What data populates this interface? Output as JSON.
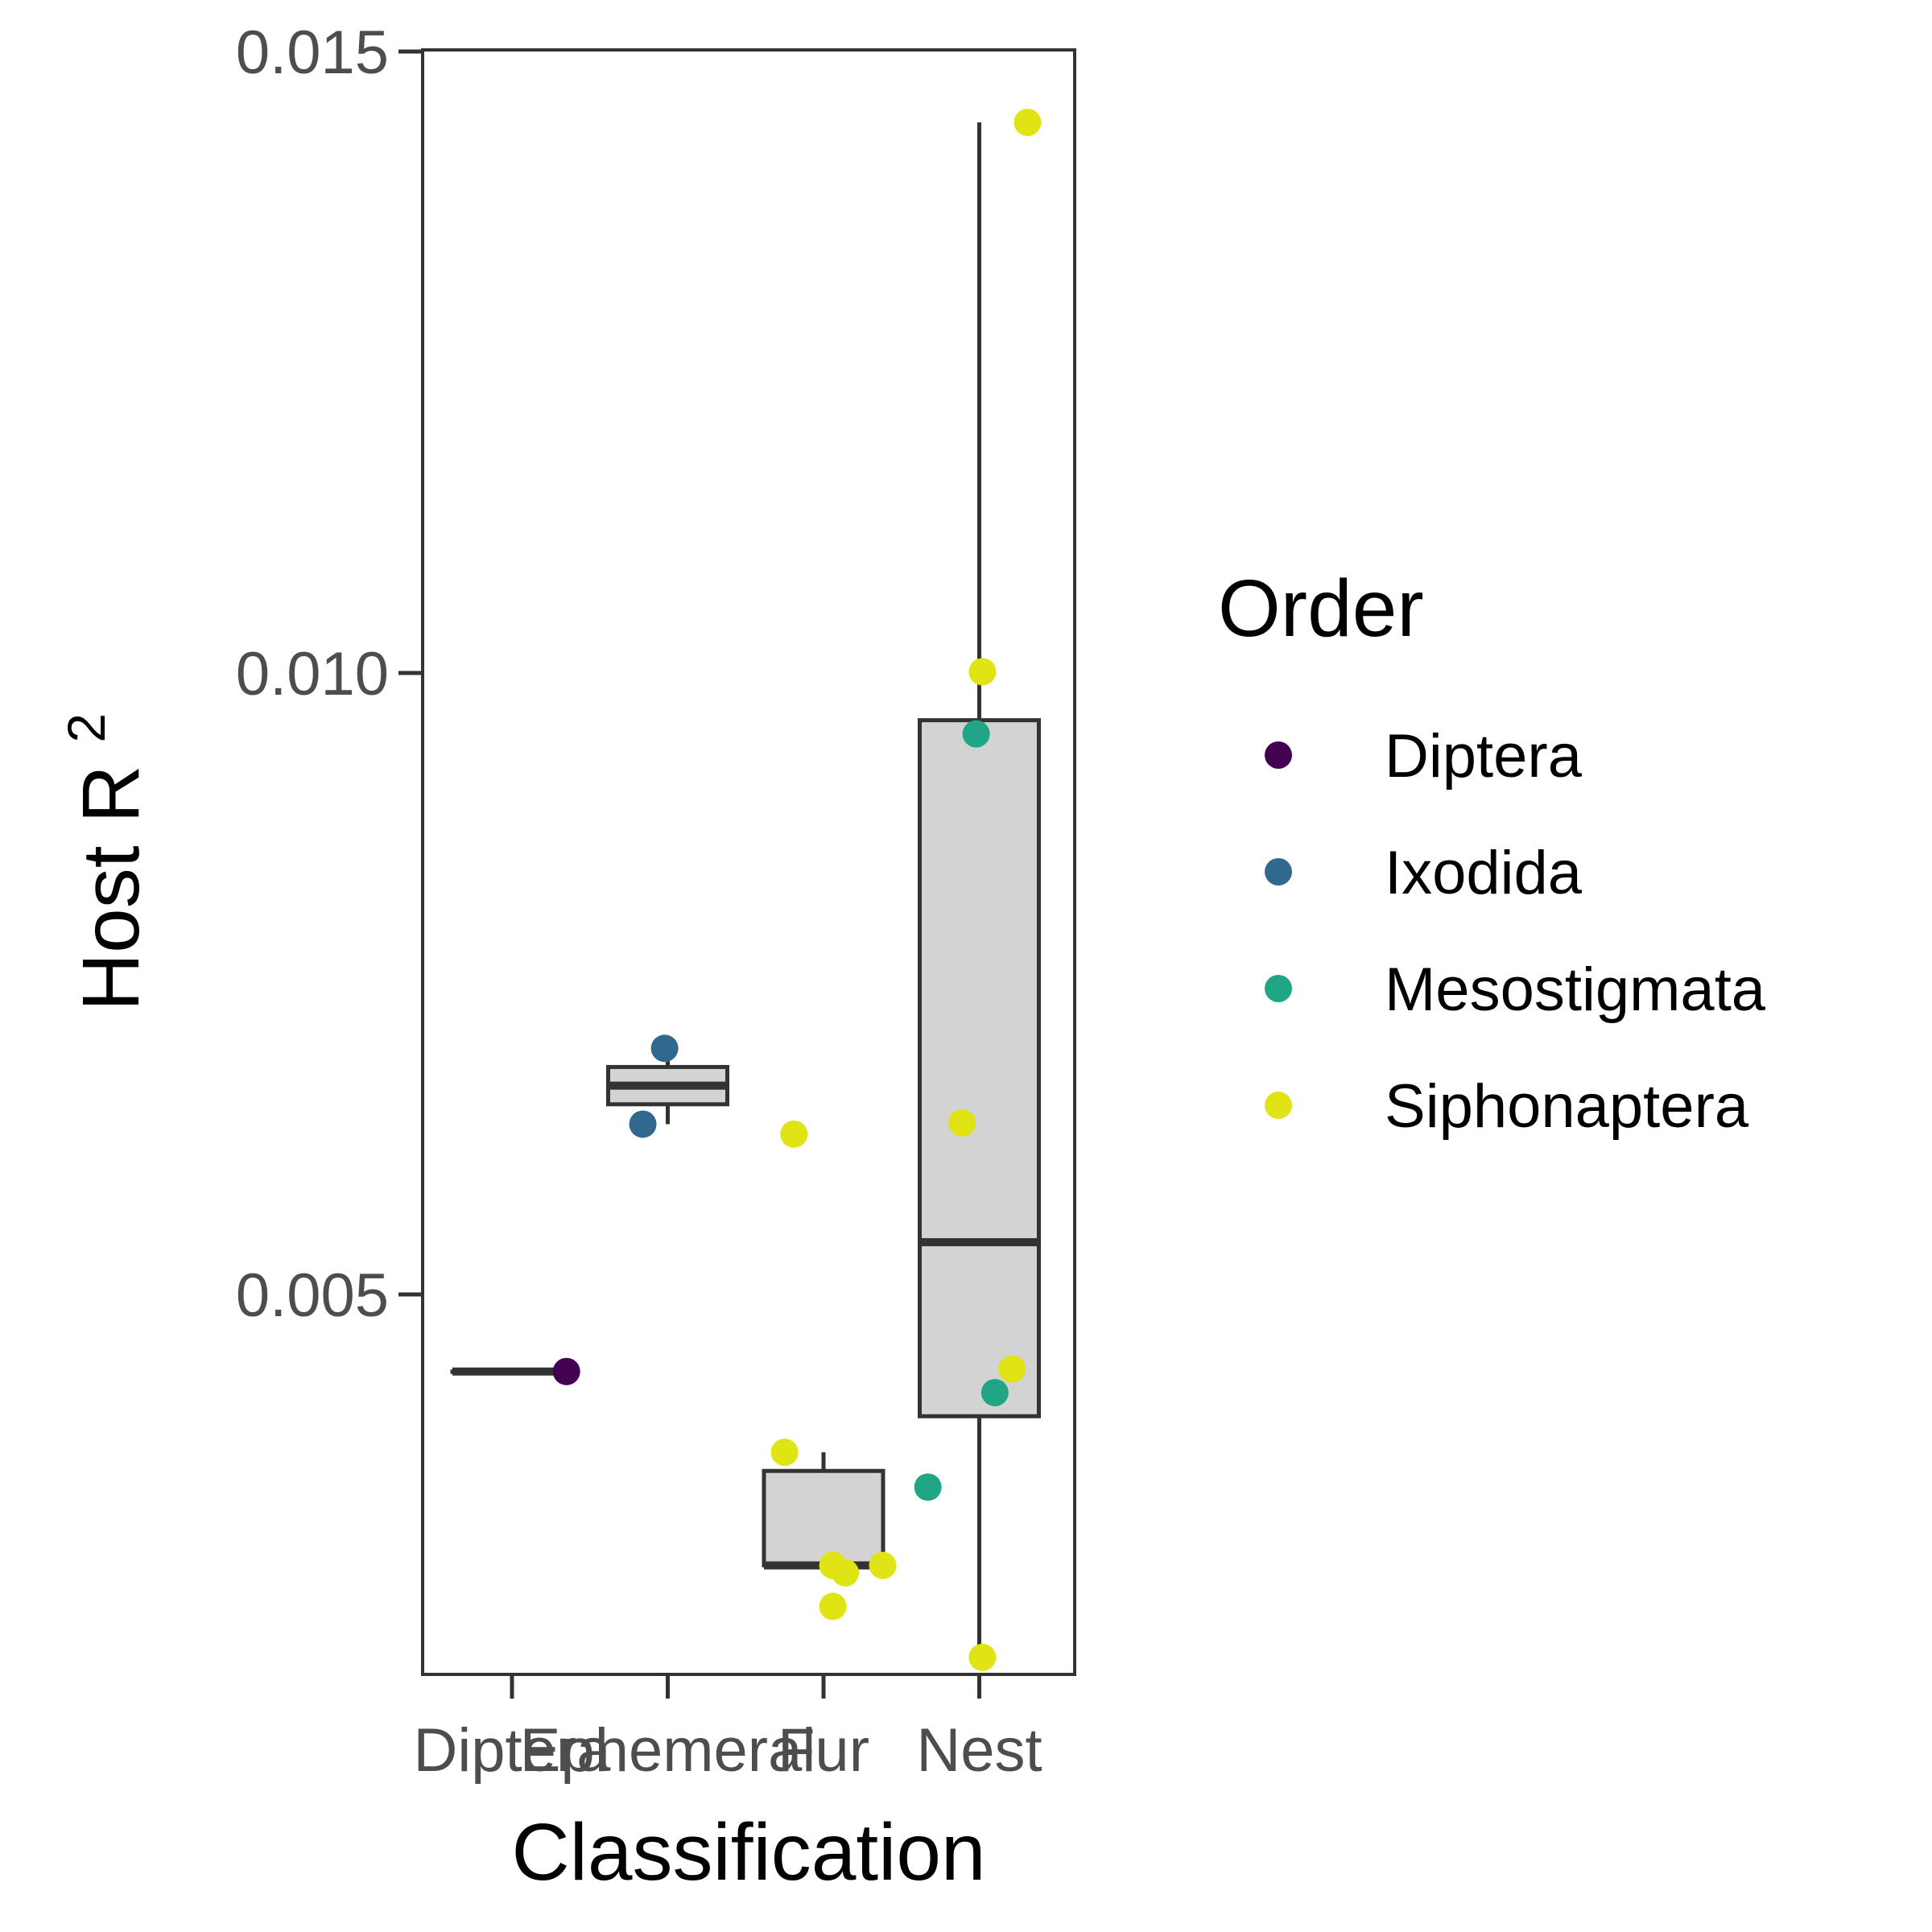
{
  "chart_data": {
    "type": "box+jitter",
    "xlabel": "Classification",
    "ylabel": "Host R",
    "ylabel_superscript": "2",
    "ylim": [
      0.0,
      0.015
    ],
    "yticks": [
      "0.005",
      "0.010",
      "0.015"
    ],
    "ytick_values": [
      0.005,
      0.01,
      0.015
    ],
    "categories": [
      "Diptera",
      "Ephemeral",
      "Fur",
      "Nest"
    ],
    "grid": false,
    "legend": {
      "title": "Order",
      "placement": "right",
      "entries": [
        {
          "name": "Diptera",
          "color": "#440154"
        },
        {
          "name": "Ixodida",
          "color": "#31688e"
        },
        {
          "name": "Mesostigmata",
          "color": "#21a685"
        },
        {
          "name": "Siphonaptera",
          "color": "#e0e314"
        }
      ]
    },
    "boxes": [
      {
        "category": "Diptera",
        "min": 0.00438,
        "q1": 0.00438,
        "median": 0.00438,
        "q3": 0.00438,
        "max": 0.00438
      },
      {
        "category": "Ephemeral",
        "min": 0.00637,
        "q1": 0.00653,
        "median": 0.00668,
        "q3": 0.00683,
        "max": 0.00698
      },
      {
        "category": "Fur",
        "min": 0.00282,
        "q1": 0.00282,
        "median": 0.00282,
        "q3": 0.00358,
        "max": 0.00373
      },
      {
        "category": "Nest",
        "min": 0.00208,
        "q1": 0.00402,
        "median": 0.00542,
        "q3": 0.00962,
        "max": 0.01443
      }
    ],
    "points": [
      {
        "category": "Diptera",
        "order": "Diptera",
        "y": 0.00438,
        "jitter": 0.35
      },
      {
        "category": "Ephemeral",
        "order": "Ixodida",
        "y": 0.00698,
        "jitter": -0.02
      },
      {
        "category": "Ephemeral",
        "order": "Ixodida",
        "y": 0.00637,
        "jitter": -0.16
      },
      {
        "category": "Fur",
        "order": "Siphonaptera",
        "y": 0.00629,
        "jitter": -0.19
      },
      {
        "category": "Fur",
        "order": "Siphonaptera",
        "y": 0.00373,
        "jitter": -0.25
      },
      {
        "category": "Fur",
        "order": "Siphonaptera",
        "y": 0.00282,
        "jitter": 0.06
      },
      {
        "category": "Fur",
        "order": "Siphonaptera",
        "y": 0.00276,
        "jitter": 0.14
      },
      {
        "category": "Fur",
        "order": "Siphonaptera",
        "y": 0.00282,
        "jitter": 0.38
      },
      {
        "category": "Fur",
        "order": "Siphonaptera",
        "y": 0.00249,
        "jitter": 0.06
      },
      {
        "category": "Fur",
        "order": "Mesostigmata",
        "y": 0.00345,
        "jitter": 0.67
      },
      {
        "category": "Nest",
        "order": "Siphonaptera",
        "y": 0.01443,
        "jitter": 0.31
      },
      {
        "category": "Nest",
        "order": "Siphonaptera",
        "y": 0.01001,
        "jitter": 0.02
      },
      {
        "category": "Nest",
        "order": "Mesostigmata",
        "y": 0.00951,
        "jitter": -0.02
      },
      {
        "category": "Nest",
        "order": "Siphonaptera",
        "y": 0.00638,
        "jitter": -0.11
      },
      {
        "category": "Nest",
        "order": "Siphonaptera",
        "y": 0.0044,
        "jitter": 0.21
      },
      {
        "category": "Nest",
        "order": "Mesostigmata",
        "y": 0.00421,
        "jitter": 0.1
      },
      {
        "category": "Nest",
        "order": "Siphonaptera",
        "y": 0.00208,
        "jitter": 0.02
      }
    ]
  }
}
